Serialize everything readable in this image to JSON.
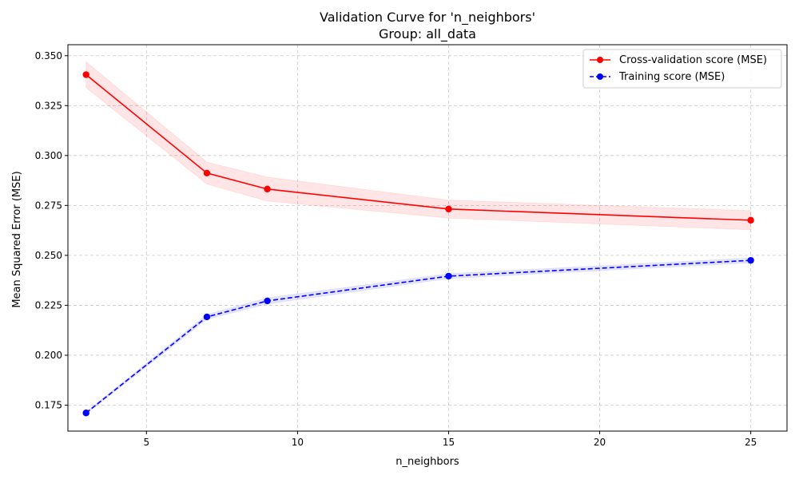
{
  "chart_data": {
    "type": "line",
    "title": "Validation Curve for 'n_neighbors'",
    "subtitle": "Group: all_data",
    "xlabel": "n_neighbors",
    "ylabel": "Mean Squared Error (MSE)",
    "xlim": [
      2.4,
      26.2
    ],
    "ylim": [
      0.162,
      0.3555
    ],
    "xticks": [
      5,
      10,
      15,
      20,
      25
    ],
    "yticks": [
      0.175,
      0.2,
      0.225,
      0.25,
      0.275,
      0.3,
      0.325,
      0.35
    ],
    "grid": true,
    "legend_position": "top-right",
    "x": [
      3,
      7,
      9,
      15,
      25
    ],
    "series": [
      {
        "name": "Cross-validation score (MSE)",
        "color": "#ff0000",
        "line_style": "solid",
        "values": [
          0.3405,
          0.2912,
          0.2832,
          0.2732,
          0.2676
        ],
        "std": [
          0.0065,
          0.0055,
          0.006,
          0.0045,
          0.0048
        ]
      },
      {
        "name": "Training score (MSE)",
        "color": "#0000ff",
        "line_style": "dashed",
        "values": [
          0.1711,
          0.2192,
          0.2272,
          0.2396,
          0.2475
        ],
        "std": [
          0.0005,
          0.0012,
          0.0015,
          0.0012,
          0.0012
        ]
      }
    ]
  }
}
